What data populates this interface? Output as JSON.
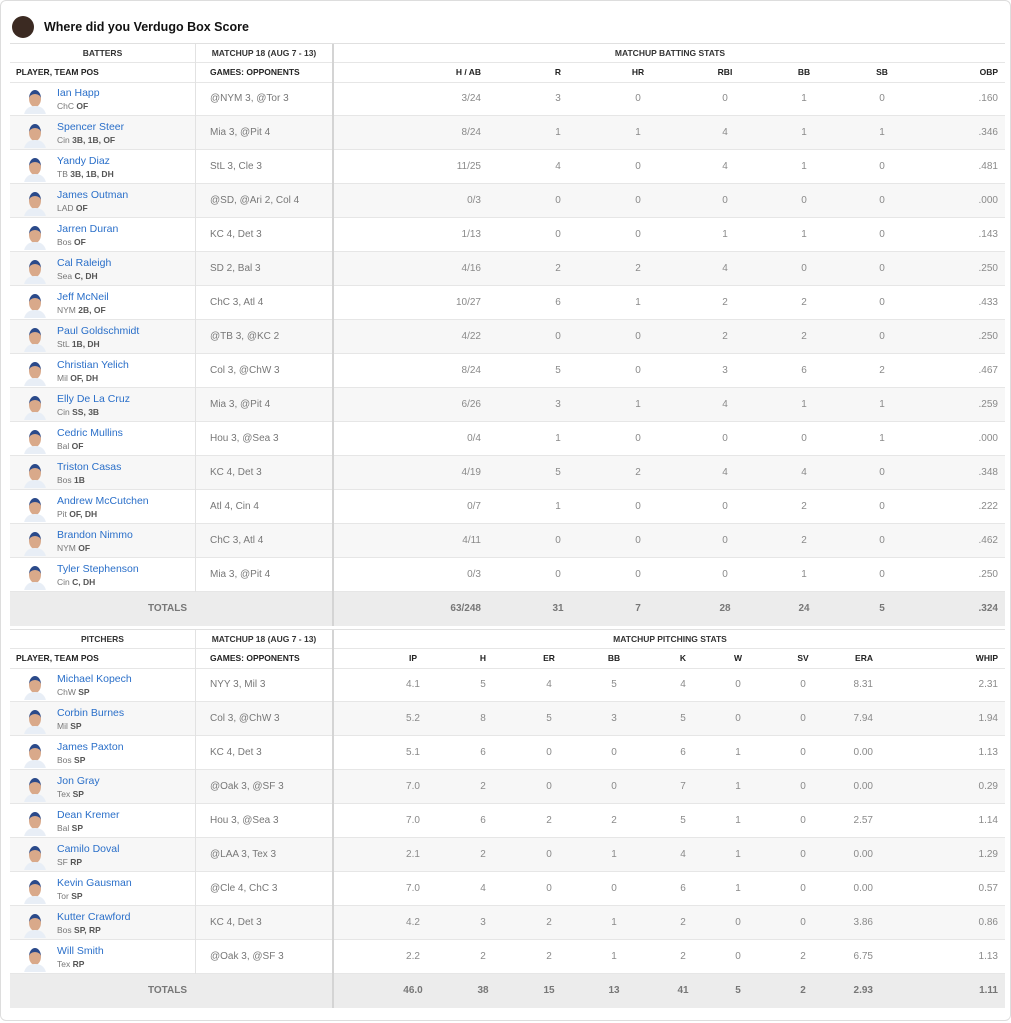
{
  "header": {
    "title": "Where did you Verdugo Box Score"
  },
  "batters": {
    "group_headers": [
      "BATTERS",
      "MATCHUP 18 (AUG 7 - 13)",
      "MATCHUP BATTING STATS"
    ],
    "columns": [
      "PLAYER, TEAM POS",
      "GAMES: OPPONENTS",
      "H / AB",
      "R",
      "HR",
      "RBI",
      "BB",
      "SB",
      "OBP"
    ],
    "rows": [
      {
        "name": "Ian Happ",
        "team": "ChC",
        "pos": "OF",
        "games": "@NYM 3, @Tor 3",
        "stats": [
          "3/24",
          "3",
          "0",
          "0",
          "1",
          "0",
          ".160"
        ]
      },
      {
        "name": "Spencer Steer",
        "team": "Cin",
        "pos": "3B, 1B, OF",
        "games": "Mia 3, @Pit 4",
        "stats": [
          "8/24",
          "1",
          "1",
          "4",
          "1",
          "1",
          ".346"
        ]
      },
      {
        "name": "Yandy Diaz",
        "team": "TB",
        "pos": "3B, 1B, DH",
        "games": "StL 3, Cle 3",
        "stats": [
          "11/25",
          "4",
          "0",
          "4",
          "1",
          "0",
          ".481"
        ]
      },
      {
        "name": "James Outman",
        "team": "LAD",
        "pos": "OF",
        "games": "@SD, @Ari 2, Col 4",
        "stats": [
          "0/3",
          "0",
          "0",
          "0",
          "0",
          "0",
          ".000"
        ]
      },
      {
        "name": "Jarren Duran",
        "team": "Bos",
        "pos": "OF",
        "games": "KC 4, Det 3",
        "stats": [
          "1/13",
          "0",
          "0",
          "1",
          "1",
          "0",
          ".143"
        ]
      },
      {
        "name": "Cal Raleigh",
        "team": "Sea",
        "pos": "C, DH",
        "games": "SD 2, Bal 3",
        "stats": [
          "4/16",
          "2",
          "2",
          "4",
          "0",
          "0",
          ".250"
        ]
      },
      {
        "name": "Jeff McNeil",
        "team": "NYM",
        "pos": "2B, OF",
        "games": "ChC 3, Atl 4",
        "stats": [
          "10/27",
          "6",
          "1",
          "2",
          "2",
          "0",
          ".433"
        ]
      },
      {
        "name": "Paul Goldschmidt",
        "team": "StL",
        "pos": "1B, DH",
        "games": "@TB 3, @KC 2",
        "stats": [
          "4/22",
          "0",
          "0",
          "2",
          "2",
          "0",
          ".250"
        ]
      },
      {
        "name": "Christian Yelich",
        "team": "Mil",
        "pos": "OF, DH",
        "games": "Col 3, @ChW 3",
        "stats": [
          "8/24",
          "5",
          "0",
          "3",
          "6",
          "2",
          ".467"
        ]
      },
      {
        "name": "Elly De La Cruz",
        "team": "Cin",
        "pos": "SS, 3B",
        "games": "Mia 3, @Pit 4",
        "stats": [
          "6/26",
          "3",
          "1",
          "4",
          "1",
          "1",
          ".259"
        ]
      },
      {
        "name": "Cedric Mullins",
        "team": "Bal",
        "pos": "OF",
        "games": "Hou 3, @Sea 3",
        "stats": [
          "0/4",
          "1",
          "0",
          "0",
          "0",
          "1",
          ".000"
        ]
      },
      {
        "name": "Triston Casas",
        "team": "Bos",
        "pos": "1B",
        "games": "KC 4, Det 3",
        "stats": [
          "4/19",
          "5",
          "2",
          "4",
          "4",
          "0",
          ".348"
        ]
      },
      {
        "name": "Andrew McCutchen",
        "team": "Pit",
        "pos": "OF, DH",
        "games": "Atl 4, Cin 4",
        "stats": [
          "0/7",
          "1",
          "0",
          "0",
          "2",
          "0",
          ".222"
        ]
      },
      {
        "name": "Brandon Nimmo",
        "team": "NYM",
        "pos": "OF",
        "games": "ChC 3, Atl 4",
        "stats": [
          "4/11",
          "0",
          "0",
          "0",
          "2",
          "0",
          ".462"
        ]
      },
      {
        "name": "Tyler Stephenson",
        "team": "Cin",
        "pos": "C, DH",
        "games": "Mia 3, @Pit 4",
        "stats": [
          "0/3",
          "0",
          "0",
          "0",
          "1",
          "0",
          ".250"
        ]
      }
    ],
    "totals": {
      "label": "TOTALS",
      "stats": [
        "63/248",
        "31",
        "7",
        "28",
        "24",
        "5",
        ".324"
      ]
    }
  },
  "pitchers": {
    "group_headers": [
      "PITCHERS",
      "MATCHUP 18 (AUG 7 - 13)",
      "MATCHUP PITCHING STATS"
    ],
    "columns": [
      "PLAYER, TEAM POS",
      "GAMES: OPPONENTS",
      "IP",
      "H",
      "ER",
      "BB",
      "K",
      "W",
      "SV",
      "ERA",
      "WHIP"
    ],
    "rows": [
      {
        "name": "Michael Kopech",
        "team": "ChW",
        "pos": "SP",
        "games": "NYY 3, Mil 3",
        "stats": [
          "4.1",
          "5",
          "4",
          "5",
          "4",
          "0",
          "0",
          "8.31",
          "2.31"
        ]
      },
      {
        "name": "Corbin Burnes",
        "team": "Mil",
        "pos": "SP",
        "games": "Col 3, @ChW 3",
        "stats": [
          "5.2",
          "8",
          "5",
          "3",
          "5",
          "0",
          "0",
          "7.94",
          "1.94"
        ]
      },
      {
        "name": "James Paxton",
        "team": "Bos",
        "pos": "SP",
        "games": "KC 4, Det 3",
        "stats": [
          "5.1",
          "6",
          "0",
          "0",
          "6",
          "1",
          "0",
          "0.00",
          "1.13"
        ]
      },
      {
        "name": "Jon Gray",
        "team": "Tex",
        "pos": "SP",
        "games": "@Oak 3, @SF 3",
        "stats": [
          "7.0",
          "2",
          "0",
          "0",
          "7",
          "1",
          "0",
          "0.00",
          "0.29"
        ]
      },
      {
        "name": "Dean Kremer",
        "team": "Bal",
        "pos": "SP",
        "games": "Hou 3, @Sea 3",
        "stats": [
          "7.0",
          "6",
          "2",
          "2",
          "5",
          "1",
          "0",
          "2.57",
          "1.14"
        ]
      },
      {
        "name": "Camilo Doval",
        "team": "SF",
        "pos": "RP",
        "games": "@LAA 3, Tex 3",
        "stats": [
          "2.1",
          "2",
          "0",
          "1",
          "4",
          "1",
          "0",
          "0.00",
          "1.29"
        ]
      },
      {
        "name": "Kevin Gausman",
        "team": "Tor",
        "pos": "SP",
        "games": "@Cle 4, ChC 3",
        "stats": [
          "7.0",
          "4",
          "0",
          "0",
          "6",
          "1",
          "0",
          "0.00",
          "0.57"
        ]
      },
      {
        "name": "Kutter Crawford",
        "team": "Bos",
        "pos": "SP, RP",
        "games": "KC 4, Det 3",
        "stats": [
          "4.2",
          "3",
          "2",
          "1",
          "2",
          "0",
          "0",
          "3.86",
          "0.86"
        ]
      },
      {
        "name": "Will Smith",
        "team": "Tex",
        "pos": "RP",
        "games": "@Oak 3, @SF 3",
        "stats": [
          "2.2",
          "2",
          "2",
          "1",
          "2",
          "0",
          "2",
          "6.75",
          "1.13"
        ]
      }
    ],
    "totals": {
      "label": "TOTALS",
      "stats": [
        "46.0",
        "38",
        "15",
        "13",
        "41",
        "5",
        "2",
        "2.93",
        "1.11"
      ]
    }
  }
}
